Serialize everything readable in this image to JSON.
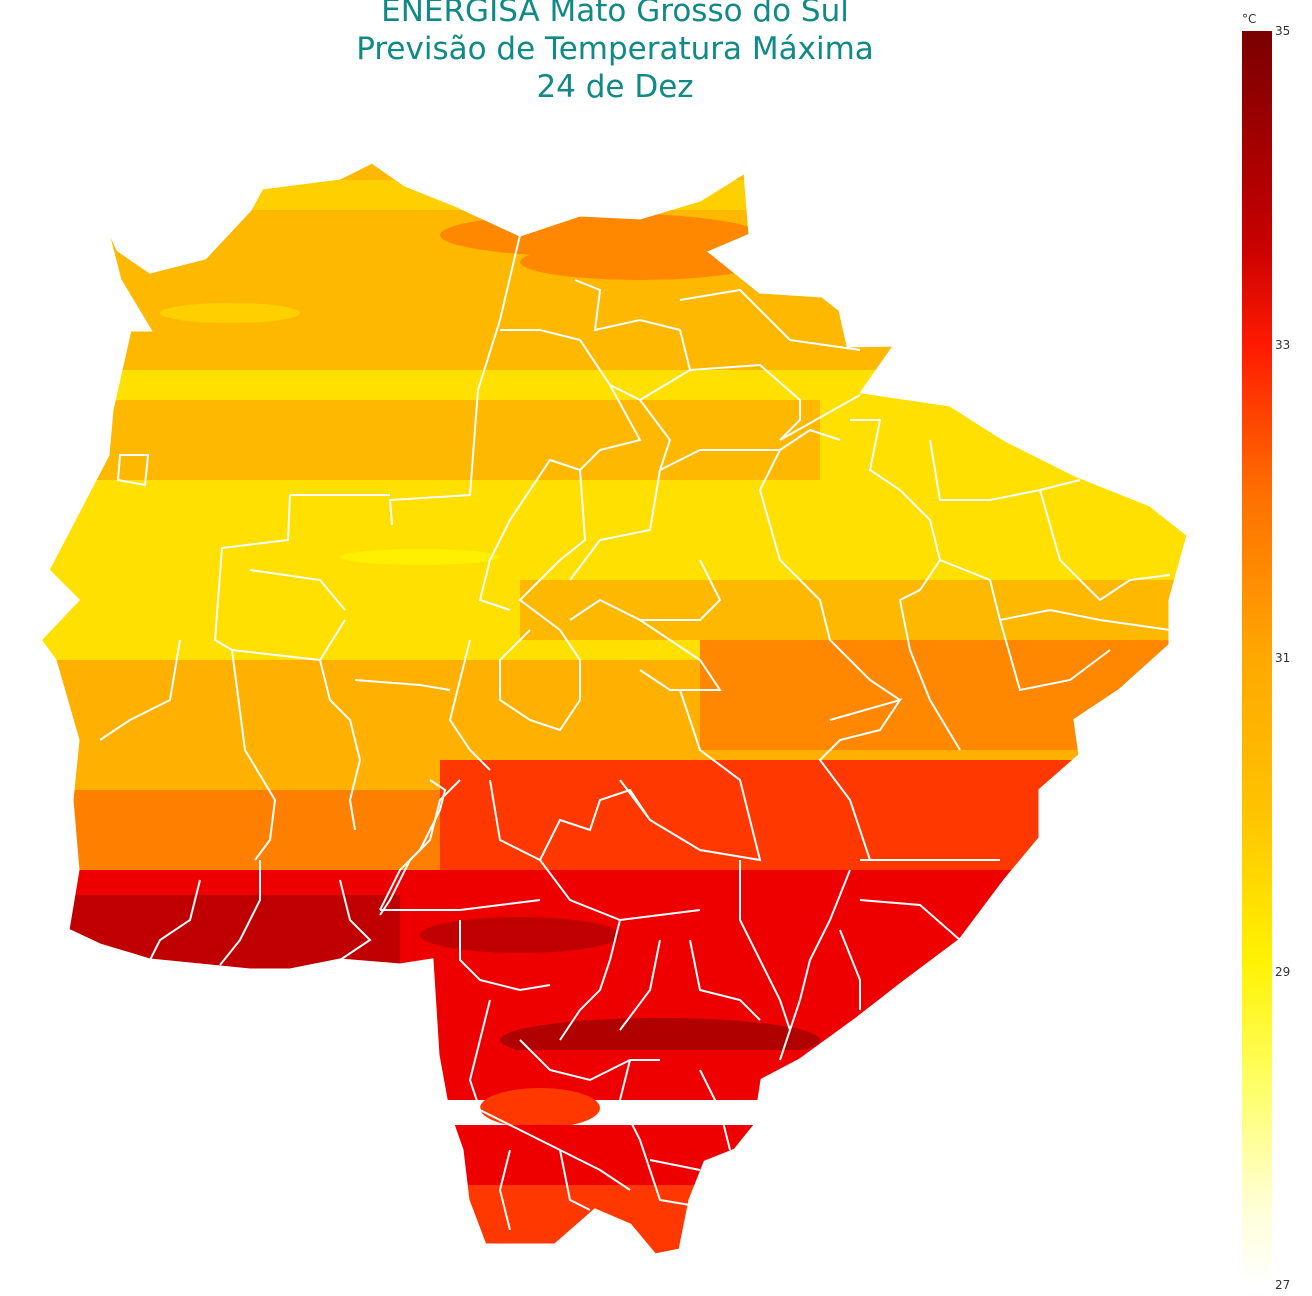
{
  "title": {
    "line1": "ENERGISA Mato Grosso do Sul",
    "line2": "Previsão de Temperatura Máxima",
    "line3": "24 de Dez"
  },
  "colorbar": {
    "unit": "°C",
    "ticks": [
      "35",
      "33",
      "31",
      "29",
      "27"
    ],
    "min": 27,
    "max": 35
  },
  "map": {
    "region": "Mato Grosso do Sul",
    "bands": [
      {
        "label": "north",
        "temp_c": 30.5,
        "color": "#ffb800"
      },
      {
        "label": "north-center",
        "temp_c": 29.8,
        "color": "#ffe000"
      },
      {
        "label": "center",
        "temp_c": 31.0,
        "color": "#ffb000"
      },
      {
        "label": "center-south",
        "temp_c": 31.8,
        "color": "#ff8000"
      },
      {
        "label": "south-center",
        "temp_c": 32.5,
        "color": "#ff3800"
      },
      {
        "label": "south",
        "temp_c": 33.5,
        "color": "#ee0000"
      },
      {
        "label": "south-west hot spot",
        "temp_c": 34.5,
        "color": "#c00000"
      }
    ]
  }
}
